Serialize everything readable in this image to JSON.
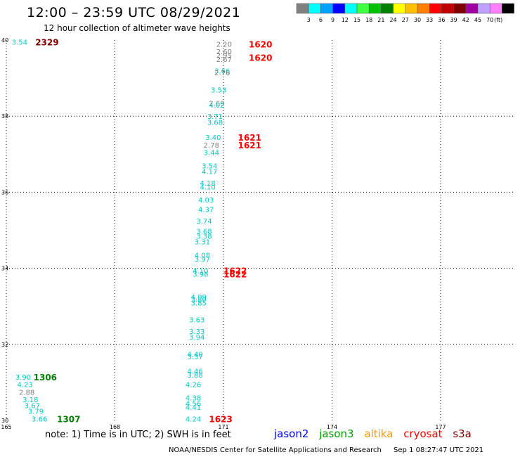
{
  "header": {
    "title": "12:00 – 23:59 UTC 08/29/2021",
    "subtitle": "12 hour collection of altimeter wave heights"
  },
  "colorbar": {
    "colors": [
      "#808080",
      "#00ffff",
      "#00a0ff",
      "#0000ff",
      "#00ffff",
      "#40ff40",
      "#00c000",
      "#008000",
      "#ffff00",
      "#ffc000",
      "#ff8000",
      "#ff0000",
      "#c00000",
      "#800000",
      "#a000a0",
      "#c0a0ff",
      "#ff80ff",
      "#000000"
    ],
    "labels": [
      "3",
      "6",
      "9",
      "12",
      "15",
      "18",
      "21",
      "24",
      "27",
      "30",
      "33",
      "36",
      "39",
      "42",
      "45",
      "70"
    ],
    "unit": "(ft)"
  },
  "chart_data": {
    "type": "scatter",
    "title": "12:00 – 23:59 UTC 08/29/2021",
    "xlim": [
      165,
      179
    ],
    "ylim": [
      30,
      40
    ],
    "x_ticks": [
      165,
      168,
      171,
      174,
      177
    ],
    "y_ticks": [
      30,
      32,
      34,
      36,
      38,
      40
    ],
    "grid": "dotted",
    "points": [
      {
        "x": 165.15,
        "y": 39.95,
        "label": "3.54",
        "color": "#00c8c8"
      },
      {
        "x": 170.8,
        "y": 39.9,
        "label": "2.20",
        "color": "#808080"
      },
      {
        "x": 170.8,
        "y": 39.7,
        "label": "2.60",
        "color": "#808080"
      },
      {
        "x": 170.8,
        "y": 39.6,
        "label": "2.95",
        "color": "#808080"
      },
      {
        "x": 170.8,
        "y": 39.5,
        "label": "2.67",
        "color": "#808080"
      },
      {
        "x": 170.75,
        "y": 39.2,
        "label": "3.66",
        "color": "#00c8c8"
      },
      {
        "x": 170.75,
        "y": 39.15,
        "label": "2.76",
        "color": "#808080"
      },
      {
        "x": 170.65,
        "y": 38.7,
        "label": "3.53",
        "color": "#00c8c8"
      },
      {
        "x": 170.6,
        "y": 38.35,
        "label": "2.69",
        "color": "#808080"
      },
      {
        "x": 170.6,
        "y": 38.3,
        "label": "4.02",
        "color": "#00c8c8"
      },
      {
        "x": 170.55,
        "y": 38.0,
        "label": "3.71",
        "color": "#00c8c8"
      },
      {
        "x": 170.55,
        "y": 37.85,
        "label": "3.68",
        "color": "#00c8c8"
      },
      {
        "x": 170.5,
        "y": 37.45,
        "label": "3.40",
        "color": "#00c8c8"
      },
      {
        "x": 170.45,
        "y": 37.25,
        "label": "2.78",
        "color": "#808080"
      },
      {
        "x": 170.45,
        "y": 37.05,
        "label": "3.44",
        "color": "#00c8c8"
      },
      {
        "x": 170.4,
        "y": 36.7,
        "label": "3.54",
        "color": "#00c8c8"
      },
      {
        "x": 170.4,
        "y": 36.55,
        "label": "4.17",
        "color": "#00c8c8"
      },
      {
        "x": 170.35,
        "y": 36.25,
        "label": "4.18",
        "color": "#00c8c8"
      },
      {
        "x": 170.35,
        "y": 36.15,
        "label": "4.10",
        "color": "#00c8c8"
      },
      {
        "x": 170.3,
        "y": 35.8,
        "label": "4.03",
        "color": "#00c8c8"
      },
      {
        "x": 170.3,
        "y": 35.55,
        "label": "4.37",
        "color": "#00c8c8"
      },
      {
        "x": 170.25,
        "y": 35.25,
        "label": "3.74",
        "color": "#00c8c8"
      },
      {
        "x": 170.25,
        "y": 34.98,
        "label": "3.68",
        "color": "#00c8c8"
      },
      {
        "x": 170.25,
        "y": 34.85,
        "label": "3.38",
        "color": "#00c8c8"
      },
      {
        "x": 170.2,
        "y": 34.7,
        "label": "3.31",
        "color": "#00c8c8"
      },
      {
        "x": 170.2,
        "y": 34.35,
        "label": "4.08",
        "color": "#00c8c8"
      },
      {
        "x": 170.2,
        "y": 34.25,
        "label": "3.97",
        "color": "#00c8c8"
      },
      {
        "x": 170.15,
        "y": 33.95,
        "label": "4.10",
        "color": "#00c8c8"
      },
      {
        "x": 170.15,
        "y": 33.85,
        "label": "3.98",
        "color": "#00c8c8"
      },
      {
        "x": 170.1,
        "y": 33.25,
        "label": "4.09",
        "color": "#00c8c8"
      },
      {
        "x": 170.1,
        "y": 33.2,
        "label": "3.80",
        "color": "#00c8c8"
      },
      {
        "x": 170.1,
        "y": 33.1,
        "label": "3.85",
        "color": "#00c8c8"
      },
      {
        "x": 170.05,
        "y": 32.65,
        "label": "3.63",
        "color": "#00c8c8"
      },
      {
        "x": 170.05,
        "y": 32.35,
        "label": "3.33",
        "color": "#00c8c8"
      },
      {
        "x": 170.05,
        "y": 32.2,
        "label": "3.94",
        "color": "#00c8c8"
      },
      {
        "x": 170.0,
        "y": 31.75,
        "label": "4.40",
        "color": "#00c8c8"
      },
      {
        "x": 170.0,
        "y": 31.68,
        "label": "3.37",
        "color": "#00c8c8"
      },
      {
        "x": 170.0,
        "y": 31.3,
        "label": "4.46",
        "color": "#00c8c8"
      },
      {
        "x": 170.0,
        "y": 31.2,
        "label": "3.88",
        "color": "#00c8c8"
      },
      {
        "x": 169.95,
        "y": 30.95,
        "label": "4.26",
        "color": "#00c8c8"
      },
      {
        "x": 169.95,
        "y": 30.6,
        "label": "4.38",
        "color": "#00c8c8"
      },
      {
        "x": 169.95,
        "y": 30.45,
        "label": "4.56",
        "color": "#00c8c8"
      },
      {
        "x": 169.95,
        "y": 30.35,
        "label": "4.41",
        "color": "#00c8c8"
      },
      {
        "x": 169.95,
        "y": 30.05,
        "label": "4.24",
        "color": "#00c8c8"
      },
      {
        "x": 165.25,
        "y": 31.15,
        "label": "3.90",
        "color": "#00c8c8"
      },
      {
        "x": 165.3,
        "y": 30.95,
        "label": "4.23",
        "color": "#00c8c8"
      },
      {
        "x": 165.35,
        "y": 30.75,
        "label": "2.88",
        "color": "#808080"
      },
      {
        "x": 165.45,
        "y": 30.55,
        "label": "3.18",
        "color": "#00c8c8"
      },
      {
        "x": 165.5,
        "y": 30.4,
        "label": "3.67",
        "color": "#00c8c8"
      },
      {
        "x": 165.6,
        "y": 30.25,
        "label": "3.79",
        "color": "#00c8c8"
      },
      {
        "x": 165.7,
        "y": 30.05,
        "label": "3.66",
        "color": "#00c8c8"
      }
    ],
    "annotations": [
      {
        "x": 165.8,
        "y": 39.95,
        "text": "2329",
        "color": "#800000"
      },
      {
        "x": 171.7,
        "y": 39.9,
        "text": "1620",
        "color": "#ff0000"
      },
      {
        "x": 171.7,
        "y": 39.55,
        "text": "1620",
        "color": "#ff0000"
      },
      {
        "x": 171.4,
        "y": 37.45,
        "text": "1621",
        "color": "#ff0000"
      },
      {
        "x": 171.4,
        "y": 37.25,
        "text": "1621",
        "color": "#ff0000"
      },
      {
        "x": 171.0,
        "y": 33.95,
        "text": "1622",
        "color": "#ff0000"
      },
      {
        "x": 171.0,
        "y": 33.85,
        "text": "1622",
        "color": "#ff0000"
      },
      {
        "x": 170.6,
        "y": 30.05,
        "text": "1623",
        "color": "#ff0000"
      },
      {
        "x": 165.75,
        "y": 31.15,
        "text": "1306",
        "color": "#008000"
      },
      {
        "x": 166.4,
        "y": 30.05,
        "text": "1307",
        "color": "#008000"
      }
    ]
  },
  "note": "note: 1) Time is in UTC; 2) SWH is in feet",
  "legend": [
    {
      "name": "jason2",
      "color": "#0000ff"
    },
    {
      "name": "jason3",
      "color": "#00a000"
    },
    {
      "name": "altika",
      "color": "#ff9900"
    },
    {
      "name": "cryosat",
      "color": "#ff0000"
    },
    {
      "name": "s3a",
      "color": "#800000"
    }
  ],
  "footer": {
    "credit": "NOAA/NESDIS Center for Satellite Applications and Research",
    "timestamp": "Sep  1 08:27:47 UTC 2021"
  }
}
